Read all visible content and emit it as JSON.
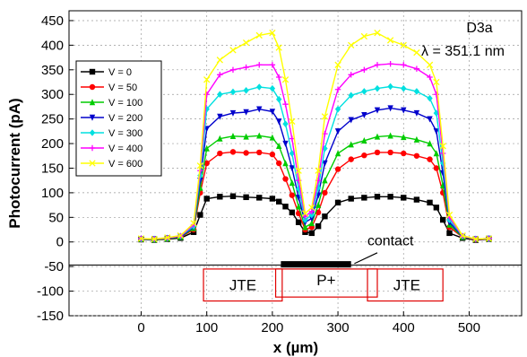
{
  "chart_data": {
    "type": "line",
    "title": "",
    "xlabel": "x (µm)",
    "ylabel": "Photocurrent (pA)",
    "xlim": [
      -110,
      580
    ],
    "ylim": [
      -150,
      470
    ],
    "xticks": [
      0,
      100,
      200,
      300,
      400,
      500
    ],
    "yticks": [
      -150,
      -100,
      -50,
      0,
      50,
      100,
      150,
      200,
      250,
      300,
      350,
      400,
      450
    ],
    "grid": true,
    "legend_position": "upper-left",
    "annotations": {
      "sample": "D3a",
      "wavelength": "λ = 351.1 nm",
      "contact": "contact",
      "jte_left": "JTE",
      "p_plus": "P+",
      "jte_right": "JTE"
    },
    "x": [
      0,
      20,
      40,
      60,
      80,
      90,
      100,
      120,
      140,
      160,
      180,
      200,
      210,
      220,
      230,
      240,
      250,
      260,
      270,
      280,
      300,
      320,
      340,
      360,
      380,
      400,
      420,
      440,
      450,
      460,
      470,
      490,
      510,
      530
    ],
    "series": [
      {
        "name": "V = 0",
        "color": "#000000",
        "marker": "square",
        "values": [
          5,
          4,
          6,
          8,
          20,
          55,
          88,
          92,
          93,
          91,
          90,
          88,
          82,
          72,
          60,
          40,
          20,
          18,
          32,
          52,
          80,
          88,
          90,
          92,
          92,
          90,
          86,
          80,
          70,
          45,
          18,
          8,
          4,
          6
        ]
      },
      {
        "name": "V = 50",
        "color": "#ff0000",
        "marker": "circle",
        "values": [
          5,
          5,
          7,
          10,
          25,
          100,
          160,
          180,
          183,
          181,
          182,
          178,
          160,
          128,
          95,
          58,
          25,
          30,
          60,
          100,
          148,
          168,
          176,
          182,
          182,
          180,
          175,
          168,
          150,
          100,
          30,
          10,
          5,
          7
        ]
      },
      {
        "name": "V = 100",
        "color": "#00cc00",
        "marker": "triangle-up",
        "values": [
          6,
          5,
          7,
          10,
          28,
          110,
          190,
          210,
          215,
          214,
          216,
          212,
          195,
          160,
          120,
          72,
          30,
          38,
          75,
          125,
          180,
          198,
          206,
          214,
          216,
          213,
          208,
          200,
          180,
          115,
          35,
          10,
          6,
          7
        ]
      },
      {
        "name": "V = 200",
        "color": "#0000cc",
        "marker": "triangle-down",
        "values": [
          6,
          6,
          8,
          11,
          30,
          125,
          230,
          255,
          262,
          264,
          270,
          265,
          245,
          200,
          150,
          90,
          40,
          48,
          95,
          160,
          225,
          248,
          258,
          268,
          272,
          268,
          262,
          250,
          225,
          140,
          40,
          11,
          6,
          7
        ]
      },
      {
        "name": "V = 300",
        "color": "#00e0e0",
        "marker": "diamond",
        "values": [
          6,
          6,
          8,
          12,
          32,
          135,
          270,
          300,
          305,
          308,
          315,
          312,
          290,
          240,
          180,
          108,
          45,
          55,
          110,
          190,
          270,
          298,
          306,
          312,
          316,
          312,
          306,
          292,
          262,
          160,
          45,
          12,
          6,
          7
        ]
      },
      {
        "name": "V = 400",
        "color": "#ff00ff",
        "marker": "plus",
        "values": [
          7,
          6,
          8,
          12,
          35,
          145,
          300,
          340,
          350,
          355,
          360,
          360,
          335,
          280,
          210,
          125,
          52,
          62,
          125,
          220,
          310,
          340,
          350,
          360,
          362,
          360,
          352,
          335,
          300,
          180,
          50,
          12,
          6,
          7
        ]
      },
      {
        "name": "V = 600",
        "color": "#ffff00",
        "marker": "cross",
        "values": [
          7,
          6,
          9,
          13,
          38,
          155,
          330,
          370,
          390,
          405,
          420,
          425,
          395,
          330,
          245,
          145,
          58,
          70,
          145,
          255,
          360,
          400,
          418,
          425,
          410,
          400,
          385,
          360,
          325,
          195,
          55,
          13,
          6,
          7
        ]
      }
    ]
  }
}
